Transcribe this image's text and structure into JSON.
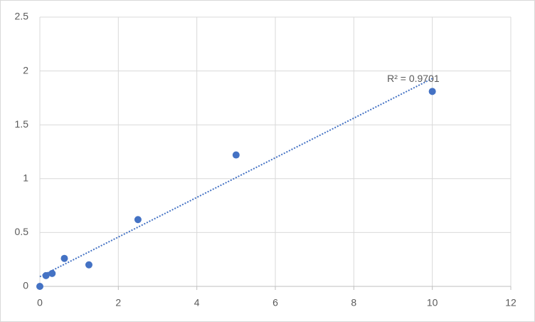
{
  "chart_data": {
    "type": "scatter",
    "series": [
      {
        "color": "#4472c4",
        "x": [
          0,
          0.156,
          0.313,
          0.625,
          1.25,
          2.5,
          5,
          10
        ],
        "values": [
          0,
          0.1,
          0.12,
          0.26,
          0.2,
          0.62,
          1.22,
          1.81
        ]
      }
    ],
    "trendline": {
      "x": [
        0,
        10
      ],
      "y": [
        0.09,
        1.93
      ],
      "label": "R² = 0.9701"
    },
    "xlim": [
      0,
      12
    ],
    "xticks": [
      0,
      2,
      4,
      6,
      8,
      10,
      12
    ],
    "ylim": [
      0,
      2.5
    ],
    "yticks": [
      0,
      0.5,
      1,
      1.5,
      2,
      2.5
    ],
    "grid": true
  }
}
